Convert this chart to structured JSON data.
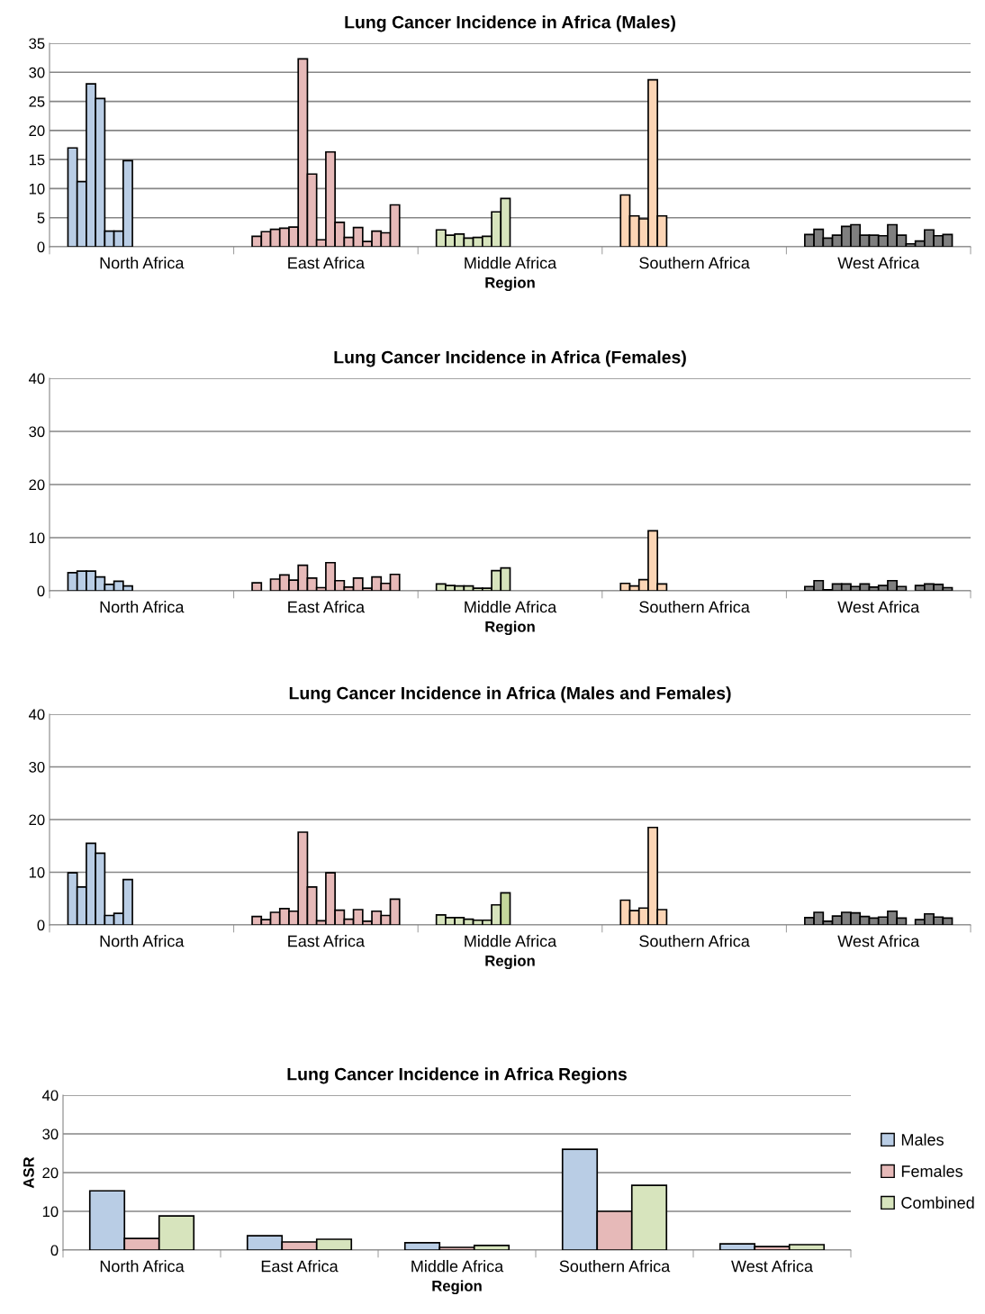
{
  "chart_data": [
    {
      "type": "bar",
      "title": "Lung Cancer Incidence in Africa (Males)",
      "xlabel": "Region",
      "categories": [
        "North Africa",
        "East Africa",
        "Middle Africa",
        "Southern Africa",
        "West Africa"
      ],
      "ylim": [
        0,
        35
      ],
      "yticks": [
        0,
        5,
        10,
        15,
        20,
        25,
        30,
        35
      ],
      "grid": "y",
      "legend": false,
      "series": [
        {
          "colors": [
            "#b9cde5",
            "#e6b9b8",
            "#d7e4bd",
            "#fcd5b5",
            "#7f7f7f"
          ],
          "values": [
            17,
            1.8,
            2.9,
            8.9,
            2.1
          ]
        },
        {
          "colors": [
            "#b9cde5",
            "#e6b9b8",
            "#d7e4bd",
            "#fcd5b5",
            "#7f7f7f"
          ],
          "values": [
            11.2,
            2.6,
            2.0,
            5.3,
            3.0
          ]
        },
        {
          "colors": [
            "#b9cde5",
            "#e6b9b8",
            "#d7e4bd",
            "#fcd5b5",
            "#7f7f7f"
          ],
          "values": [
            28,
            3.0,
            2.2,
            4.8,
            1.5
          ]
        },
        {
          "colors": [
            "#b9cde5",
            "#e6b9b8",
            "#d7e4bd",
            "#fcd5b5",
            "#7f7f7f"
          ],
          "values": [
            25.5,
            3.2,
            1.5,
            28.7,
            2.0
          ]
        },
        {
          "colors": [
            "#b9cde5",
            "#e6b9b8",
            "#d7e4bd",
            "#fcd5b5",
            "#7f7f7f"
          ],
          "values": [
            2.7,
            3.4,
            1.6,
            5.3,
            3.5
          ]
        },
        {
          "colors": [
            "#b9cde5",
            "#e6b9b8",
            "#d7e4bd",
            "#fcd5b5",
            "#7f7f7f"
          ],
          "values": [
            2.7,
            32.3,
            1.8,
            null,
            3.8
          ]
        },
        {
          "colors": [
            "#b9cde5",
            "#e6b9b8",
            "#d7e4bd",
            "#fcd5b5",
            "#7f7f7f"
          ],
          "values": [
            14.8,
            12.5,
            6.0,
            null,
            2.0
          ]
        },
        {
          "colors": [
            "#b9cde5",
            "#e6b9b8",
            "#d7e4bd",
            "#fcd5b5",
            "#7f7f7f"
          ],
          "values": [
            null,
            1.2,
            8.3,
            null,
            2.0
          ]
        },
        {
          "colors": [
            "#b9cde5",
            "#e6b9b8",
            "#d7e4bd",
            "#fcd5b5",
            "#7f7f7f"
          ],
          "values": [
            null,
            16.3,
            null,
            null,
            1.9
          ]
        },
        {
          "colors": [
            "#b9cde5",
            "#e6b9b8",
            "#d7e4bd",
            "#fcd5b5",
            "#7f7f7f"
          ],
          "values": [
            null,
            4.2,
            null,
            null,
            3.8
          ]
        },
        {
          "colors": [
            "#b9cde5",
            "#e6b9b8",
            "#d7e4bd",
            "#fcd5b5",
            "#7f7f7f"
          ],
          "values": [
            null,
            1.6,
            null,
            null,
            2.0
          ]
        },
        {
          "colors": [
            "#b9cde5",
            "#e6b9b8",
            "#d7e4bd",
            "#fcd5b5",
            "#7f7f7f"
          ],
          "values": [
            null,
            3.3,
            null,
            null,
            0.5
          ]
        },
        {
          "colors": [
            "#b9cde5",
            "#e6b9b8",
            "#d7e4bd",
            "#fcd5b5",
            "#7f7f7f"
          ],
          "values": [
            null,
            0.9,
            null,
            null,
            1.0
          ]
        },
        {
          "colors": [
            "#b9cde5",
            "#e6b9b8",
            "#d7e4bd",
            "#fcd5b5",
            "#7f7f7f"
          ],
          "values": [
            null,
            2.7,
            null,
            null,
            2.9
          ]
        },
        {
          "colors": [
            "#b9cde5",
            "#e6b9b8",
            "#d7e4bd",
            "#fcd5b5",
            "#7f7f7f"
          ],
          "values": [
            null,
            2.4,
            null,
            null,
            1.9
          ]
        },
        {
          "colors": [
            "#b9cde5",
            "#e6b9b8",
            "#d7e4bd",
            "#fcd5b5",
            "#7f7f7f"
          ],
          "values": [
            null,
            7.2,
            null,
            null,
            2.1
          ]
        }
      ]
    },
    {
      "type": "bar",
      "title": "Lung Cancer Incidence in Africa (Females)",
      "xlabel": "Region",
      "categories": [
        "North Africa",
        "East Africa",
        "Middle Africa",
        "Southern Africa",
        "West Africa"
      ],
      "ylim": [
        0,
        40
      ],
      "yticks": [
        0,
        10,
        20,
        30,
        40
      ],
      "grid": "y",
      "legend": false,
      "series": [
        {
          "colors": [
            "#b9cde5",
            "#e6b9b8",
            "#d7e4bd",
            "#fcd5b5",
            "#7f7f7f"
          ],
          "values": [
            3.4,
            1.5,
            1.3,
            1.4,
            0.8
          ]
        },
        {
          "colors": [
            "#b9cde5",
            "#e6b9b8",
            "#d7e4bd",
            "#fcd5b5",
            "#7f7f7f"
          ],
          "values": [
            3.7,
            null,
            1.0,
            0.9,
            1.9
          ]
        },
        {
          "colors": [
            "#b9cde5",
            "#e6b9b8",
            "#d7e4bd",
            "#fcd5b5",
            "#7f7f7f"
          ],
          "values": [
            3.7,
            2.2,
            0.9,
            2.1,
            0.2
          ]
        },
        {
          "colors": [
            "#b9cde5",
            "#e6b9b8",
            "#d7e4bd",
            "#fcd5b5",
            "#7f7f7f"
          ],
          "values": [
            2.6,
            3.0,
            0.9,
            11.3,
            1.3
          ]
        },
        {
          "colors": [
            "#b9cde5",
            "#e6b9b8",
            "#d7e4bd",
            "#fcd5b5",
            "#7f7f7f"
          ],
          "values": [
            1.2,
            2.0,
            0.5,
            1.3,
            1.3
          ]
        },
        {
          "colors": [
            "#b9cde5",
            "#e6b9b8",
            "#d7e4bd",
            "#fcd5b5",
            "#7f7f7f"
          ],
          "values": [
            1.8,
            4.8,
            0.5,
            null,
            0.8
          ]
        },
        {
          "colors": [
            "#b9cde5",
            "#e6b9b8",
            "#d7e4bd",
            "#fcd5b5",
            "#7f7f7f"
          ],
          "values": [
            0.9,
            2.4,
            3.8,
            null,
            1.3
          ]
        },
        {
          "colors": [
            "#b9cde5",
            "#e6b9b8",
            "#d7e4bd",
            "#fcd5b5",
            "#7f7f7f"
          ],
          "values": [
            null,
            0.6,
            4.3,
            null,
            0.7
          ]
        },
        {
          "colors": [
            "#b9cde5",
            "#e6b9b8",
            "#d7e4bd",
            "#fcd5b5",
            "#7f7f7f"
          ],
          "values": [
            null,
            5.3,
            null,
            null,
            1.0
          ]
        },
        {
          "colors": [
            "#b9cde5",
            "#e6b9b8",
            "#d7e4bd",
            "#fcd5b5",
            "#7f7f7f"
          ],
          "values": [
            null,
            1.9,
            null,
            null,
            1.9
          ]
        },
        {
          "colors": [
            "#b9cde5",
            "#e6b9b8",
            "#d7e4bd",
            "#fcd5b5",
            "#7f7f7f"
          ],
          "values": [
            null,
            0.7,
            null,
            null,
            0.8
          ]
        },
        {
          "colors": [
            "#b9cde5",
            "#e6b9b8",
            "#d7e4bd",
            "#fcd5b5",
            "#7f7f7f"
          ],
          "values": [
            null,
            2.4,
            null,
            null,
            null
          ]
        },
        {
          "colors": [
            "#b9cde5",
            "#e6b9b8",
            "#d7e4bd",
            "#fcd5b5",
            "#7f7f7f"
          ],
          "values": [
            null,
            0.5,
            null,
            null,
            1.0
          ]
        },
        {
          "colors": [
            "#b9cde5",
            "#e6b9b8",
            "#d7e4bd",
            "#fcd5b5",
            "#7f7f7f"
          ],
          "values": [
            null,
            2.6,
            null,
            null,
            1.3
          ]
        },
        {
          "colors": [
            "#b9cde5",
            "#e6b9b8",
            "#d7e4bd",
            "#fcd5b5",
            "#7f7f7f"
          ],
          "values": [
            null,
            1.4,
            null,
            null,
            1.2
          ]
        },
        {
          "colors": [
            "#b9cde5",
            "#e6b9b8",
            "#d7e4bd",
            "#fcd5b5",
            "#7f7f7f"
          ],
          "values": [
            null,
            3.1,
            null,
            null,
            0.6
          ]
        }
      ]
    },
    {
      "type": "bar",
      "title": "Lung Cancer Incidence in Africa (Males and Females)",
      "xlabel": "Region",
      "categories": [
        "North Africa",
        "East Africa",
        "Middle Africa",
        "Southern Africa",
        "West Africa"
      ],
      "ylim": [
        0,
        40
      ],
      "yticks": [
        0,
        10,
        20,
        30,
        40
      ],
      "grid": "y",
      "legend": false,
      "series": [
        {
          "colors": [
            "#b9cde5",
            "#e6b9b8",
            "#d7e4bd",
            "#fcd5b5",
            "#7f7f7f"
          ],
          "values": [
            9.9,
            1.6,
            1.9,
            4.7,
            1.4
          ]
        },
        {
          "colors": [
            "#b9cde5",
            "#e6b9b8",
            "#d7e4bd",
            "#fcd5b5",
            "#7f7f7f"
          ],
          "values": [
            7.2,
            1.0,
            1.4,
            2.7,
            2.4
          ]
        },
        {
          "colors": [
            "#b9cde5",
            "#e6b9b8",
            "#d7e4bd",
            "#fcd5b5",
            "#7f7f7f"
          ],
          "values": [
            15.5,
            2.4,
            1.4,
            3.2,
            0.7
          ]
        },
        {
          "colors": [
            "#b9cde5",
            "#e6b9b8",
            "#d7e4bd",
            "#fcd5b5",
            "#7f7f7f"
          ],
          "values": [
            13.6,
            3.1,
            1.1,
            18.5,
            1.7
          ]
        },
        {
          "colors": [
            "#b9cde5",
            "#e6b9b8",
            "#d7e4bd",
            "#fcd5b5",
            "#7f7f7f"
          ],
          "values": [
            1.8,
            2.6,
            0.9,
            2.9,
            2.4
          ]
        },
        {
          "colors": [
            "#b9cde5",
            "#e6b9b8",
            "#d7e4bd",
            "#fcd5b5",
            "#7f7f7f"
          ],
          "values": [
            2.2,
            17.6,
            0.9,
            null,
            2.3
          ]
        },
        {
          "colors": [
            "#b9cde5",
            "#e6b9b8",
            "#d7e4bd",
            "#fcd5b5",
            "#7f7f7f"
          ],
          "values": [
            8.6,
            7.2,
            3.8,
            null,
            1.6
          ]
        },
        {
          "colors": [
            "#b9cde5",
            "#e6b9b8",
            "#c4d79b",
            "#fcd5b5",
            "#7f7f7f"
          ],
          "values": [
            null,
            0.8,
            6.1,
            null,
            1.3
          ]
        },
        {
          "colors": [
            "#b9cde5",
            "#e6b9b8",
            "#d7e4bd",
            "#fcd5b5",
            "#7f7f7f"
          ],
          "values": [
            null,
            9.9,
            null,
            null,
            1.5
          ]
        },
        {
          "colors": [
            "#b9cde5",
            "#e6b9b8",
            "#d7e4bd",
            "#fcd5b5",
            "#7f7f7f"
          ],
          "values": [
            null,
            2.8,
            null,
            null,
            2.6
          ]
        },
        {
          "colors": [
            "#b9cde5",
            "#e6b9b8",
            "#d7e4bd",
            "#fcd5b5",
            "#7f7f7f"
          ],
          "values": [
            null,
            1.1,
            null,
            null,
            1.3
          ]
        },
        {
          "colors": [
            "#b9cde5",
            "#e6b9b8",
            "#d7e4bd",
            "#fcd5b5",
            "#7f7f7f"
          ],
          "values": [
            null,
            2.9,
            null,
            null,
            null
          ]
        },
        {
          "colors": [
            "#b9cde5",
            "#e6b9b8",
            "#d7e4bd",
            "#fcd5b5",
            "#7f7f7f"
          ],
          "values": [
            null,
            0.7,
            null,
            null,
            1.0
          ]
        },
        {
          "colors": [
            "#b9cde5",
            "#e6b9b8",
            "#d7e4bd",
            "#fcd5b5",
            "#7f7f7f"
          ],
          "values": [
            null,
            2.6,
            null,
            null,
            2.1
          ]
        },
        {
          "colors": [
            "#b9cde5",
            "#e6b9b8",
            "#d7e4bd",
            "#fcd5b5",
            "#7f7f7f"
          ],
          "values": [
            null,
            1.8,
            null,
            null,
            1.5
          ]
        },
        {
          "colors": [
            "#b9cde5",
            "#e6b9b8",
            "#d7e4bd",
            "#fcd5b5",
            "#7f7f7f"
          ],
          "values": [
            null,
            4.9,
            null,
            null,
            1.3
          ]
        }
      ]
    },
    {
      "type": "bar",
      "title": "Lung Cancer Incidence in Africa Regions",
      "xlabel": "Region",
      "ylabel": "ASR",
      "categories": [
        "North Africa",
        "East Africa",
        "Middle Africa",
        "Southern Africa",
        "West Africa"
      ],
      "ylim": [
        0,
        40
      ],
      "yticks": [
        0,
        10,
        20,
        30,
        40
      ],
      "grid": "y",
      "legend": "right",
      "series": [
        {
          "name": "Males",
          "color": "#b9cde5",
          "values": [
            15.3,
            3.7,
            1.9,
            26,
            1.6
          ]
        },
        {
          "name": "Females",
          "color": "#e6b9b8",
          "values": [
            3.0,
            2.1,
            0.7,
            10.0,
            0.9
          ]
        },
        {
          "name": "Combined",
          "color": "#d7e4bd",
          "values": [
            8.8,
            2.8,
            1.2,
            16.7,
            1.4
          ]
        }
      ]
    }
  ]
}
